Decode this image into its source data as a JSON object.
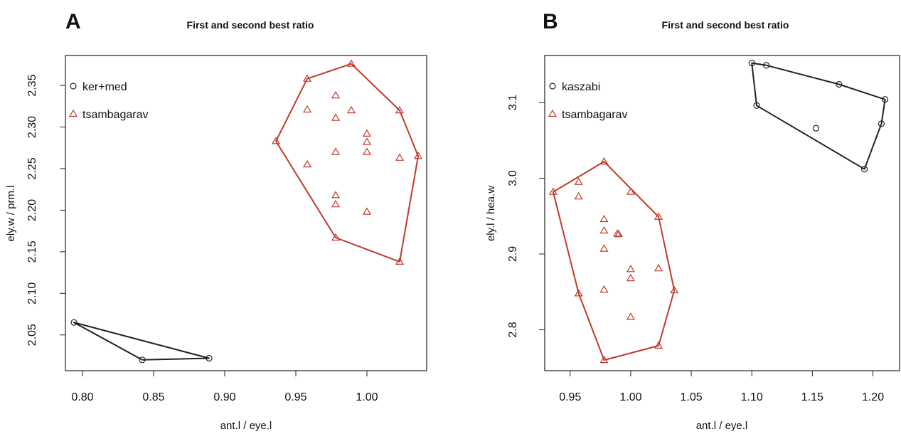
{
  "chart_data": [
    {
      "panel": "A",
      "type": "scatter",
      "title": "First and second best ratio",
      "xlabel": "ant.l / eye.l",
      "ylabel": "ely.w / prm.l",
      "xlim": [
        0.788,
        1.042
      ],
      "ylim": [
        2.007,
        2.386
      ],
      "xticks": [
        0.8,
        0.85,
        0.9,
        0.95,
        1.0
      ],
      "yticks": [
        2.05,
        2.1,
        2.15,
        2.2,
        2.25,
        2.3,
        2.35
      ],
      "grid": false,
      "legend_position": "top-left",
      "series": [
        {
          "name": "ker+med",
          "marker": "circle",
          "color": "#222222",
          "x": [
            0.794,
            0.842,
            0.889
          ],
          "y": [
            2.065,
            2.02,
            2.022
          ],
          "hull": [
            [
              0.794,
              2.065
            ],
            [
              0.889,
              2.022
            ],
            [
              0.842,
              2.02
            ]
          ]
        },
        {
          "name": "tsambagarav",
          "marker": "triangle",
          "color": "#c0392b",
          "x": [
            0.989,
            0.958,
            0.936,
            0.958,
            0.978,
            0.978,
            0.989,
            0.978,
            1.0,
            1.0,
            1.0,
            1.023,
            0.958,
            1.023,
            1.036,
            0.978,
            0.978,
            1.0,
            0.978,
            1.023
          ],
          "y": [
            2.376,
            2.358,
            2.283,
            2.321,
            2.338,
            2.311,
            2.32,
            2.27,
            2.292,
            2.282,
            2.27,
            2.32,
            2.255,
            2.263,
            2.265,
            2.218,
            2.207,
            2.198,
            2.167,
            2.138
          ],
          "hull": [
            [
              0.989,
              2.376
            ],
            [
              1.023,
              2.32
            ],
            [
              1.036,
              2.265
            ],
            [
              1.023,
              2.138
            ],
            [
              0.978,
              2.167
            ],
            [
              0.936,
              2.283
            ],
            [
              0.958,
              2.358
            ]
          ]
        }
      ]
    },
    {
      "panel": "B",
      "type": "scatter",
      "title": "First and second best ratio",
      "xlabel": "ant.l / eye.l",
      "ylabel": "ely.l / hea.w",
      "xlim": [
        0.929,
        1.222
      ],
      "ylim": [
        2.746,
        3.162
      ],
      "xticks": [
        0.95,
        1.0,
        1.05,
        1.1,
        1.15,
        1.2
      ],
      "yticks": [
        2.8,
        2.9,
        3.0,
        3.1
      ],
      "grid": false,
      "legend_position": "top-left",
      "series": [
        {
          "name": "kaszabi",
          "marker": "circle",
          "color": "#222222",
          "x": [
            1.1,
            1.112,
            1.172,
            1.21,
            1.207,
            1.104,
            1.153,
            1.193
          ],
          "y": [
            3.152,
            3.149,
            3.124,
            3.104,
            3.072,
            3.096,
            3.066,
            3.012
          ],
          "hull": [
            [
              1.1,
              3.152
            ],
            [
              1.112,
              3.149
            ],
            [
              1.172,
              3.124
            ],
            [
              1.21,
              3.104
            ],
            [
              1.207,
              3.072
            ],
            [
              1.193,
              3.012
            ],
            [
              1.104,
              3.096
            ]
          ]
        },
        {
          "name": "tsambagarav",
          "marker": "triangle",
          "color": "#c0392b",
          "x": [
            0.978,
            0.936,
            0.957,
            0.957,
            1.0,
            1.023,
            0.978,
            0.978,
            0.989,
            0.99,
            0.978,
            1.0,
            1.023,
            1.0,
            0.978,
            1.036,
            0.957,
            1.0,
            1.023,
            0.978
          ],
          "y": [
            3.022,
            2.982,
            2.995,
            2.976,
            2.982,
            2.949,
            2.946,
            2.931,
            2.927,
            2.926,
            2.907,
            2.88,
            2.881,
            2.868,
            2.853,
            2.852,
            2.848,
            2.817,
            2.779,
            2.76
          ],
          "hull": [
            [
              0.978,
              3.022
            ],
            [
              1.023,
              2.949
            ],
            [
              1.036,
              2.852
            ],
            [
              1.023,
              2.779
            ],
            [
              0.978,
              2.76
            ],
            [
              0.957,
              2.848
            ],
            [
              0.936,
              2.982
            ]
          ]
        }
      ]
    }
  ]
}
